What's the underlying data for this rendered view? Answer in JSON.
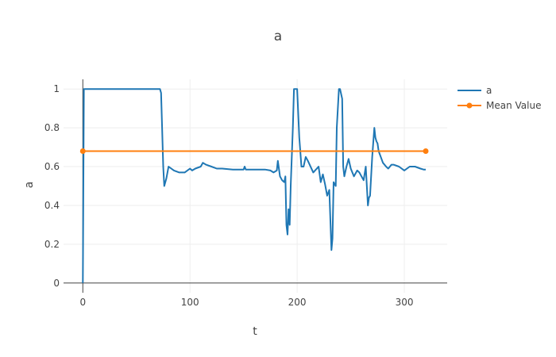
{
  "chart_data": {
    "type": "line",
    "title": "a",
    "xlabel": "t",
    "ylabel": "a",
    "xlim": [
      -18,
      340
    ],
    "ylim": [
      -0.05,
      1.05
    ],
    "x_ticks": [
      0,
      100,
      200,
      300
    ],
    "y_ticks": [
      0,
      0.2,
      0.4,
      0.6,
      0.8,
      1
    ],
    "grid": true,
    "legend": "top-right",
    "series": [
      {
        "name": "a",
        "color": "#1f77b4",
        "x": [
          0,
          1,
          2,
          3,
          10,
          20,
          30,
          40,
          50,
          60,
          70,
          72,
          73,
          74,
          75,
          76,
          78,
          80,
          85,
          90,
          95,
          100,
          102,
          105,
          110,
          112,
          115,
          120,
          125,
          130,
          140,
          150,
          151,
          152,
          160,
          170,
          175,
          178,
          181,
          182,
          184,
          186,
          188,
          189,
          190,
          191,
          192,
          193,
          194,
          196,
          197,
          198,
          200,
          202,
          204,
          206,
          208,
          210,
          215,
          220,
          222,
          224,
          226,
          228,
          230,
          232,
          233,
          234,
          236,
          237,
          239,
          240,
          242,
          243,
          244,
          246,
          248,
          250,
          253,
          256,
          258,
          260,
          262,
          264,
          266,
          267,
          268,
          270,
          272,
          273,
          274,
          275,
          276,
          278,
          280,
          283,
          285,
          288,
          290,
          295,
          300,
          305,
          310,
          315,
          318,
          320
        ],
        "values": [
          0,
          1,
          1,
          1,
          1,
          1,
          1,
          1,
          1,
          1,
          1,
          1,
          0.98,
          0.8,
          0.6,
          0.5,
          0.54,
          0.6,
          0.58,
          0.57,
          0.57,
          0.59,
          0.58,
          0.59,
          0.6,
          0.62,
          0.61,
          0.6,
          0.59,
          0.59,
          0.585,
          0.585,
          0.6,
          0.585,
          0.585,
          0.585,
          0.58,
          0.57,
          0.58,
          0.63,
          0.55,
          0.53,
          0.52,
          0.55,
          0.3,
          0.25,
          0.38,
          0.3,
          0.5,
          0.8,
          1,
          1,
          1,
          0.75,
          0.6,
          0.6,
          0.65,
          0.63,
          0.57,
          0.6,
          0.52,
          0.56,
          0.51,
          0.45,
          0.48,
          0.17,
          0.23,
          0.52,
          0.5,
          0.8,
          1,
          1,
          0.95,
          0.6,
          0.55,
          0.6,
          0.64,
          0.59,
          0.55,
          0.58,
          0.57,
          0.55,
          0.53,
          0.6,
          0.4,
          0.44,
          0.45,
          0.65,
          0.8,
          0.75,
          0.73,
          0.72,
          0.68,
          0.65,
          0.62,
          0.6,
          0.59,
          0.61,
          0.61,
          0.6,
          0.58,
          0.6,
          0.6,
          0.59,
          0.585,
          0.585
        ]
      },
      {
        "name": "Mean Value",
        "color": "#ff7f0e",
        "markers": true,
        "x": [
          0,
          320
        ],
        "values": [
          0.68,
          0.68
        ]
      }
    ]
  }
}
